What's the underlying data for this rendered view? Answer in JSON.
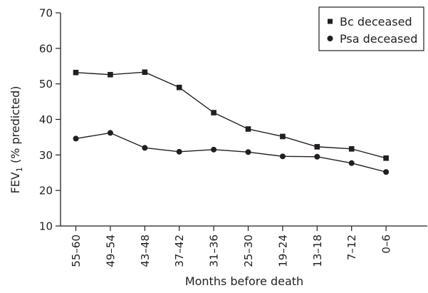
{
  "chart_data": {
    "type": "line",
    "title": "",
    "xlabel": "Months before death",
    "ylabel_main": "FEV",
    "ylabel_sub": "1",
    "ylabel_rest": " (% predicted)",
    "ylim": [
      10,
      70
    ],
    "yticks": [
      10,
      20,
      30,
      40,
      50,
      60,
      70
    ],
    "categories": [
      "55–60",
      "49–54",
      "43–48",
      "37–42",
      "31–36",
      "25–30",
      "19–24",
      "13–18",
      "7–12",
      "0–6"
    ],
    "grid": false,
    "legend_position": "top-right",
    "series": [
      {
        "name": "Bc deceased",
        "marker": "square",
        "color": "#231f20",
        "values": [
          53.2,
          52.6,
          53.3,
          49.0,
          41.9,
          37.3,
          35.2,
          32.3,
          31.7,
          29.1
        ]
      },
      {
        "name": "Psa deceased",
        "marker": "circle",
        "color": "#231f20",
        "values": [
          34.6,
          36.2,
          32.0,
          30.9,
          31.5,
          30.8,
          29.6,
          29.5,
          27.7,
          25.2
        ]
      }
    ]
  }
}
